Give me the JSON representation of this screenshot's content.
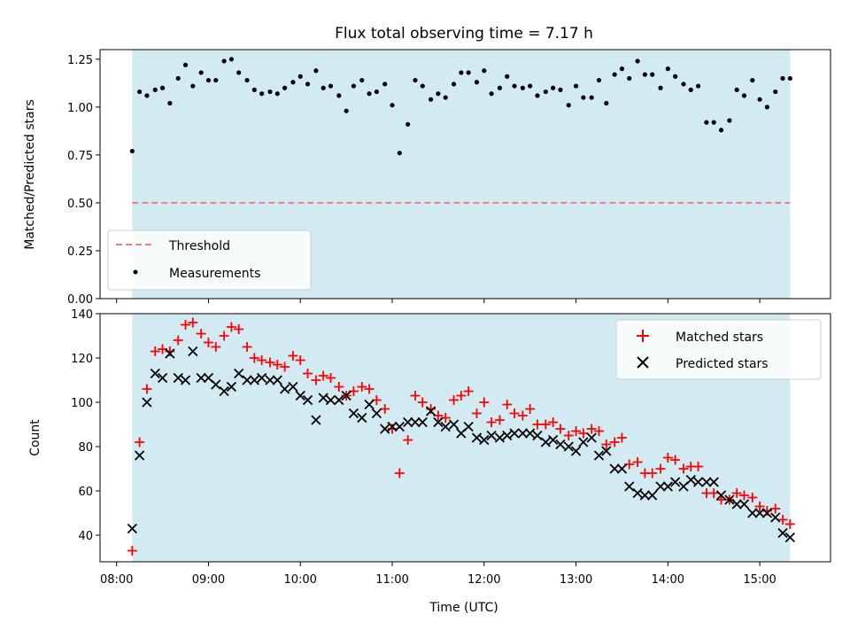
{
  "title": "Flux total observing time = 7.17 h",
  "colors": {
    "background_span": "#add8e6",
    "threshold": "#f08080",
    "measurements": "#000000",
    "matched": "#ff0000",
    "predicted": "#000000"
  },
  "chart_data": [
    {
      "type": "scatter",
      "ylabel": "Matched/Predicted stars",
      "ylim": [
        0,
        1.3
      ],
      "xlim_hours": [
        7.82,
        15.77
      ],
      "yticks": [
        "0.00",
        "0.25",
        "0.50",
        "0.75",
        "1.00",
        "1.25"
      ],
      "observing_span_hours": [
        8.17,
        15.33
      ],
      "threshold": 0.5,
      "legend": {
        "position": "lower-left",
        "entries": [
          "Threshold",
          "Measurements"
        ]
      },
      "series": [
        {
          "name": "Measurements",
          "x": [
            8.17,
            8.25,
            8.33,
            8.42,
            8.5,
            8.58,
            8.67,
            8.75,
            8.83,
            8.92,
            9.0,
            9.08,
            9.17,
            9.25,
            9.33,
            9.42,
            9.5,
            9.58,
            9.67,
            9.75,
            9.83,
            9.92,
            10.0,
            10.08,
            10.17,
            10.25,
            10.33,
            10.42,
            10.5,
            10.58,
            10.67,
            10.75,
            10.83,
            10.92,
            11.0,
            11.08,
            11.17,
            11.25,
            11.33,
            11.42,
            11.5,
            11.58,
            11.67,
            11.75,
            11.83,
            11.92,
            12.0,
            12.08,
            12.17,
            12.25,
            12.33,
            12.42,
            12.5,
            12.58,
            12.67,
            12.75,
            12.83,
            12.92,
            13.0,
            13.08,
            13.17,
            13.25,
            13.33,
            13.42,
            13.5,
            13.58,
            13.67,
            13.75,
            13.83,
            13.92,
            14.0,
            14.08,
            14.17,
            14.25,
            14.33,
            14.42,
            14.5,
            14.58,
            14.67,
            14.75,
            14.83,
            14.92,
            15.0,
            15.08,
            15.17,
            15.25,
            15.33
          ],
          "y": [
            0.77,
            1.08,
            1.06,
            1.09,
            1.1,
            1.02,
            1.15,
            1.22,
            1.11,
            1.18,
            1.14,
            1.14,
            1.24,
            1.25,
            1.18,
            1.14,
            1.09,
            1.07,
            1.08,
            1.07,
            1.1,
            1.13,
            1.16,
            1.12,
            1.19,
            1.1,
            1.11,
            1.06,
            0.98,
            1.11,
            1.14,
            1.07,
            1.08,
            1.12,
            1.01,
            0.76,
            0.91,
            1.14,
            1.11,
            1.04,
            1.07,
            1.05,
            1.12,
            1.18,
            1.18,
            1.13,
            1.19,
            1.07,
            1.1,
            1.16,
            1.11,
            1.1,
            1.11,
            1.06,
            1.08,
            1.1,
            1.09,
            1.01,
            1.11,
            1.05,
            1.05,
            1.14,
            1.02,
            1.17,
            1.2,
            1.15,
            1.24,
            1.17,
            1.17,
            1.1,
            1.2,
            1.16,
            1.12,
            1.09,
            1.11,
            0.92,
            0.92,
            0.88,
            0.93,
            1.09,
            1.06,
            1.14,
            1.04,
            1.0,
            1.08,
            1.15,
            1.15
          ]
        }
      ]
    },
    {
      "type": "scatter",
      "xlabel": "Time (UTC)",
      "ylabel": "Count",
      "ylim": [
        28,
        140
      ],
      "xlim_hours": [
        7.82,
        15.77
      ],
      "yticks": [
        "40",
        "60",
        "80",
        "100",
        "120",
        "140"
      ],
      "xticks": [
        "08:00",
        "09:00",
        "10:00",
        "11:00",
        "12:00",
        "13:00",
        "14:00",
        "15:00"
      ],
      "observing_span_hours": [
        8.17,
        15.33
      ],
      "legend": {
        "position": "upper-right",
        "entries": [
          "Matched stars",
          "Predicted stars"
        ]
      },
      "series": [
        {
          "name": "Matched stars",
          "x": [
            8.17,
            8.25,
            8.33,
            8.42,
            8.5,
            8.58,
            8.67,
            8.75,
            8.83,
            8.92,
            9.0,
            9.08,
            9.17,
            9.25,
            9.33,
            9.42,
            9.5,
            9.58,
            9.67,
            9.75,
            9.83,
            9.92,
            10.0,
            10.08,
            10.17,
            10.25,
            10.33,
            10.42,
            10.5,
            10.58,
            10.67,
            10.75,
            10.83,
            10.92,
            11.0,
            11.08,
            11.17,
            11.25,
            11.33,
            11.42,
            11.5,
            11.58,
            11.67,
            11.75,
            11.83,
            11.92,
            12.0,
            12.08,
            12.17,
            12.25,
            12.33,
            12.42,
            12.5,
            12.58,
            12.67,
            12.75,
            12.83,
            12.92,
            13.0,
            13.08,
            13.17,
            13.25,
            13.33,
            13.42,
            13.5,
            13.58,
            13.67,
            13.75,
            13.83,
            13.92,
            14.0,
            14.08,
            14.17,
            14.25,
            14.33,
            14.42,
            14.5,
            14.58,
            14.67,
            14.75,
            14.83,
            14.92,
            15.0,
            15.08,
            15.17,
            15.25,
            15.33
          ],
          "y": [
            33,
            82,
            106,
            123,
            124,
            123,
            128,
            135,
            136,
            131,
            127,
            125,
            130,
            134,
            133,
            125,
            120,
            119,
            118,
            117,
            116,
            121,
            119,
            113,
            110,
            112,
            111,
            107,
            103,
            105,
            107,
            106,
            101,
            97,
            88,
            68,
            83,
            103,
            100,
            97,
            94,
            93,
            101,
            103,
            105,
            95,
            100,
            91,
            92,
            99,
            95,
            94,
            97,
            90,
            90,
            91,
            88,
            85,
            87,
            86,
            88,
            87,
            81,
            82,
            84,
            72,
            73,
            68,
            68,
            70,
            75,
            74,
            70,
            71,
            71,
            59,
            59,
            56,
            56,
            59,
            58,
            57,
            53,
            51,
            52,
            47,
            45
          ]
        },
        {
          "name": "Predicted stars",
          "x": [
            8.17,
            8.25,
            8.33,
            8.42,
            8.5,
            8.58,
            8.67,
            8.75,
            8.83,
            8.92,
            9.0,
            9.08,
            9.17,
            9.25,
            9.33,
            9.42,
            9.5,
            9.58,
            9.67,
            9.75,
            9.83,
            9.92,
            10.0,
            10.08,
            10.17,
            10.25,
            10.33,
            10.42,
            10.5,
            10.58,
            10.67,
            10.75,
            10.83,
            10.92,
            11.0,
            11.08,
            11.17,
            11.25,
            11.33,
            11.42,
            11.5,
            11.58,
            11.67,
            11.75,
            11.83,
            11.92,
            12.0,
            12.08,
            12.17,
            12.25,
            12.33,
            12.42,
            12.5,
            12.58,
            12.67,
            12.75,
            12.83,
            12.92,
            13.0,
            13.08,
            13.17,
            13.25,
            13.33,
            13.42,
            13.5,
            13.58,
            13.67,
            13.75,
            13.83,
            13.92,
            14.0,
            14.08,
            14.17,
            14.25,
            14.33,
            14.42,
            14.5,
            14.58,
            14.67,
            14.75,
            14.83,
            14.92,
            15.0,
            15.08,
            15.17,
            15.25,
            15.33
          ],
          "y": [
            43,
            76,
            100,
            113,
            111,
            122,
            111,
            110,
            123,
            111,
            111,
            108,
            105,
            107,
            113,
            110,
            110,
            111,
            110,
            110,
            106,
            107,
            103,
            101,
            92,
            102,
            101,
            101,
            103,
            95,
            93,
            99,
            95,
            88,
            89,
            89,
            91,
            91,
            91,
            96,
            91,
            89,
            90,
            86,
            89,
            84,
            83,
            85,
            84,
            85,
            86,
            86,
            86,
            85,
            82,
            83,
            81,
            80,
            78,
            82,
            84,
            76,
            78,
            70,
            70,
            62,
            59,
            58,
            58,
            62,
            62,
            64,
            62,
            65,
            64,
            64,
            64,
            58,
            56,
            54,
            54,
            50,
            50,
            50,
            48,
            41,
            39
          ]
        }
      ]
    }
  ]
}
